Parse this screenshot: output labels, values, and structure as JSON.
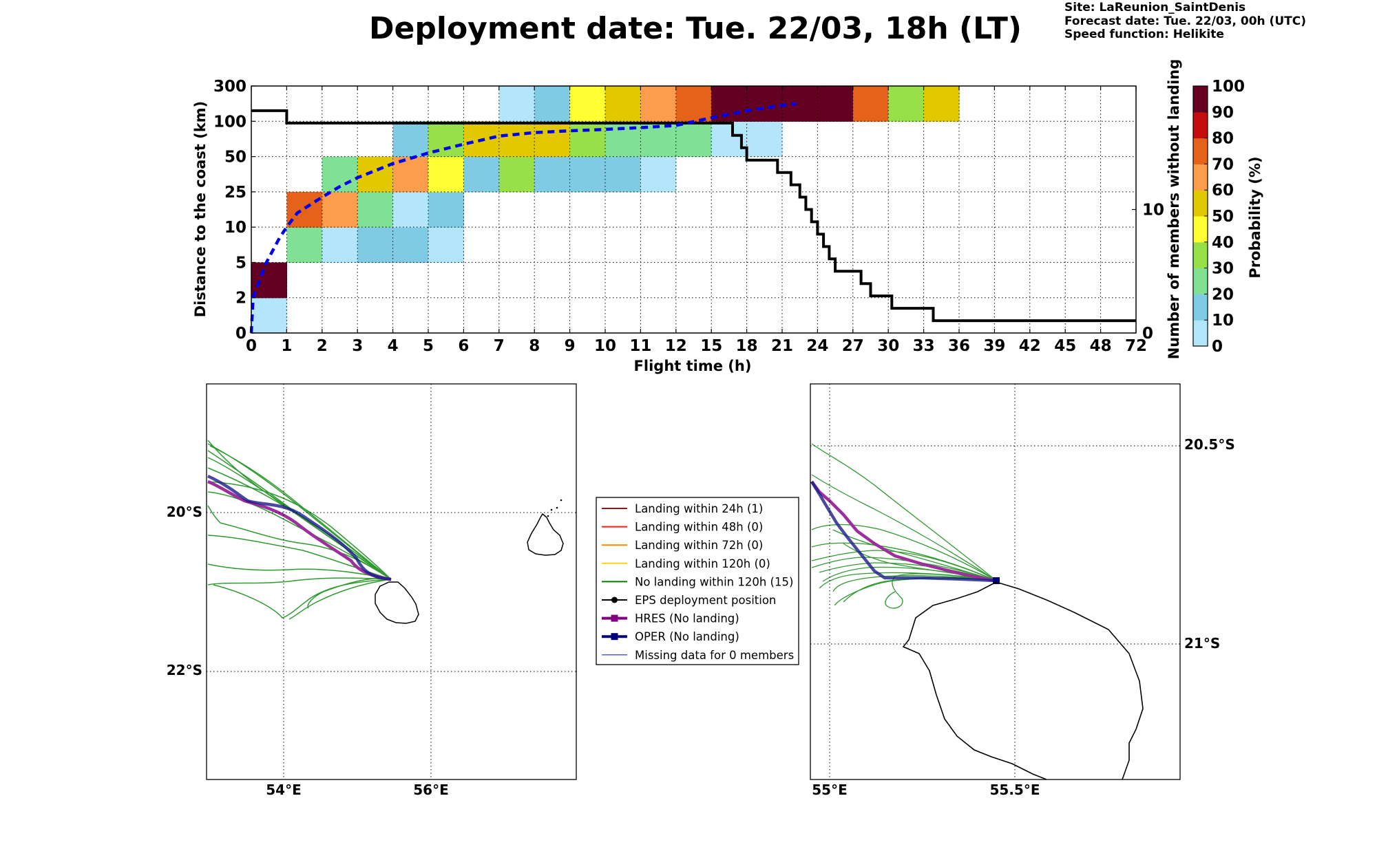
{
  "header": {
    "title": "Deployment date: Tue. 22/03, 18h (LT)",
    "site": "Site: LaReunion_SaintDenis",
    "forecast": "Forecast date: Tue. 22/03, 00h (UTC)",
    "speed": "Speed function: Helikite"
  },
  "chart_data": [
    {
      "type": "heatmap",
      "xlabel": "Flight time (h)",
      "ylabel": "Distance to the coast (km)",
      "y2label": "Number of members without landing",
      "x_ticks": [
        "0",
        "1",
        "2",
        "3",
        "4",
        "5",
        "6",
        "7",
        "8",
        "9",
        "10",
        "11",
        "12",
        "15",
        "18",
        "21",
        "24",
        "27",
        "30",
        "33",
        "36",
        "39",
        "42",
        "45",
        "48",
        "72"
      ],
      "y_ticks": [
        "0",
        "2",
        "5",
        "10",
        "25",
        "50",
        "100",
        "300"
      ],
      "y2_ticks": [
        "0",
        "10"
      ],
      "y2_range": [
        0,
        20
      ],
      "colorbar": {
        "label": "Probability (%)",
        "ticks": [
          "0",
          "10",
          "20",
          "30",
          "40",
          "50",
          "60",
          "70",
          "80",
          "90",
          "100"
        ],
        "colors": [
          "#b3e5fb",
          "#7fcbe3",
          "#80e096",
          "#97e04a",
          "#ffff33",
          "#e2c800",
          "#fc9c4d",
          "#e5621a",
          "#c30d0f",
          "#640021"
        ]
      },
      "grid": true,
      "cells": [
        {
          "x": 0,
          "y": 0,
          "p": 5
        },
        {
          "x": 0,
          "y": 1,
          "p": 95
        },
        {
          "x": 1,
          "y": 2,
          "p": 25
        },
        {
          "x": 1,
          "y": 3,
          "p": 75
        },
        {
          "x": 2,
          "y": 2,
          "p": 5
        },
        {
          "x": 2,
          "y": 3,
          "p": 65
        },
        {
          "x": 2,
          "y": 4,
          "p": 25
        },
        {
          "x": 3,
          "y": 2,
          "p": 15
        },
        {
          "x": 3,
          "y": 3,
          "p": 25
        },
        {
          "x": 3,
          "y": 4,
          "p": 55
        },
        {
          "x": 4,
          "y": 2,
          "p": 15
        },
        {
          "x": 4,
          "y": 3,
          "p": 5
        },
        {
          "x": 4,
          "y": 4,
          "p": 65
        },
        {
          "x": 4,
          "y": 5,
          "p": 15
        },
        {
          "x": 5,
          "y": 2,
          "p": 5
        },
        {
          "x": 5,
          "y": 3,
          "p": 15
        },
        {
          "x": 5,
          "y": 4,
          "p": 45
        },
        {
          "x": 5,
          "y": 5,
          "p": 35
        },
        {
          "x": 6,
          "y": 4,
          "p": 15
        },
        {
          "x": 6,
          "y": 5,
          "p": 55
        },
        {
          "x": 7,
          "y": 4,
          "p": 35
        },
        {
          "x": 7,
          "y": 5,
          "p": 55
        },
        {
          "x": 7,
          "y": 6,
          "p": 5
        },
        {
          "x": 8,
          "y": 4,
          "p": 15
        },
        {
          "x": 8,
          "y": 5,
          "p": 55
        },
        {
          "x": 8,
          "y": 6,
          "p": 15
        },
        {
          "x": 9,
          "y": 4,
          "p": 15
        },
        {
          "x": 9,
          "y": 5,
          "p": 35
        },
        {
          "x": 9,
          "y": 6,
          "p": 45
        },
        {
          "x": 10,
          "y": 4,
          "p": 15
        },
        {
          "x": 10,
          "y": 5,
          "p": 25
        },
        {
          "x": 10,
          "y": 6,
          "p": 55
        },
        {
          "x": 11,
          "y": 4,
          "p": 5
        },
        {
          "x": 11,
          "y": 5,
          "p": 25
        },
        {
          "x": 11,
          "y": 6,
          "p": 65
        },
        {
          "x": 12,
          "y": 5,
          "p": 25
        },
        {
          "x": 12,
          "y": 6,
          "p": 75
        },
        {
          "x": 13,
          "y": 5,
          "p": 5
        },
        {
          "x": 13,
          "y": 6,
          "p": 95
        },
        {
          "x": 14,
          "y": 5,
          "p": 5
        },
        {
          "x": 14,
          "y": 6,
          "p": 95
        },
        {
          "x": 15,
          "y": 6,
          "p": 95
        },
        {
          "x": 16,
          "y": 6,
          "p": 95
        },
        {
          "x": 17,
          "y": 6,
          "p": 75
        },
        {
          "x": 18,
          "y": 6,
          "p": 35
        },
        {
          "x": 19,
          "y": 6,
          "p": 55
        }
      ],
      "series": [
        {
          "kind": "members-step",
          "color": "#000000",
          "points": [
            [
              0,
              18
            ],
            [
              1,
              18
            ],
            [
              1,
              17
            ],
            [
              13.6,
              17
            ],
            [
              13.6,
              16
            ],
            [
              13.85,
              16
            ],
            [
              13.85,
              15
            ],
            [
              14,
              15
            ],
            [
              14,
              14
            ],
            [
              14.87,
              14
            ],
            [
              14.87,
              13
            ],
            [
              15.25,
              13
            ],
            [
              15.25,
              12
            ],
            [
              15.5,
              12
            ],
            [
              15.5,
              11
            ],
            [
              15.67,
              11
            ],
            [
              15.67,
              10
            ],
            [
              15.83,
              10
            ],
            [
              15.83,
              9
            ],
            [
              16,
              9
            ],
            [
              16,
              8
            ],
            [
              16.17,
              8
            ],
            [
              16.17,
              7
            ],
            [
              16.33,
              7
            ],
            [
              16.33,
              6
            ],
            [
              16.5,
              6
            ],
            [
              16.5,
              5
            ],
            [
              17.23,
              5
            ],
            [
              17.23,
              4
            ],
            [
              17.5,
              4
            ],
            [
              17.5,
              3
            ],
            [
              18.1,
              3
            ],
            [
              18.1,
              2
            ],
            [
              19.27,
              2
            ],
            [
              19.27,
              1
            ],
            [
              25,
              1
            ]
          ]
        },
        {
          "kind": "median-distance",
          "color": "#0000ee",
          "style": "dashed",
          "points": [
            [
              0,
              0
            ],
            [
              0.05,
              1
            ],
            [
              0.18,
              1.35
            ],
            [
              0.4,
              1.95
            ],
            [
              0.8,
              2.7
            ],
            [
              1,
              3
            ],
            [
              1.3,
              3.4
            ],
            [
              2,
              3.85
            ],
            [
              2.5,
              4.15
            ],
            [
              3,
              4.4
            ],
            [
              4,
              4.8
            ],
            [
              5,
              5.1
            ],
            [
              6,
              5.35
            ],
            [
              7,
              5.58
            ],
            [
              8,
              5.68
            ],
            [
              9,
              5.73
            ],
            [
              10,
              5.77
            ],
            [
              11,
              5.82
            ],
            [
              12,
              5.88
            ],
            [
              13,
              6.1
            ],
            [
              14,
              6.3
            ],
            [
              15,
              6.45
            ],
            [
              15.4,
              6.5
            ]
          ]
        }
      ]
    },
    {
      "type": "line",
      "map": "regional",
      "x_ticks": [
        "54°E",
        "56°E"
      ],
      "y_ticks": [
        "20°S",
        "22°S"
      ]
    },
    {
      "type": "line",
      "map": "zoom",
      "x_ticks": [
        "55°E",
        "55.5°E"
      ],
      "y_ticks": [
        "20.5°S",
        "21°S"
      ]
    }
  ],
  "legend": {
    "items": [
      {
        "label": "Landing within 24h (1)",
        "color": "#8b1a1a",
        "marker": "none",
        "width": 2
      },
      {
        "label": "Landing within 48h (0)",
        "color": "#ff1a1a",
        "marker": "none",
        "width": 2
      },
      {
        "label": "Landing within 72h (0)",
        "color": "#ff8c00",
        "marker": "none",
        "width": 2
      },
      {
        "label": "Landing within 120h (0)",
        "color": "#f5d40f",
        "marker": "none",
        "width": 2
      },
      {
        "label": "No landing within 120h (15)",
        "color": "#007a00",
        "marker": "none",
        "width": 2
      },
      {
        "label": "EPS deployment position",
        "color": "#000000",
        "marker": "circle",
        "width": 2
      },
      {
        "label": "HRES (No landing)",
        "color": "#800080",
        "marker": "square",
        "width": 4
      },
      {
        "label": "OPER (No landing)",
        "color": "#00007a",
        "marker": "square",
        "width": 4
      },
      {
        "label": "Missing data for 0 members",
        "color": "#4f5cff",
        "marker": "none",
        "width": 1.5
      }
    ]
  }
}
